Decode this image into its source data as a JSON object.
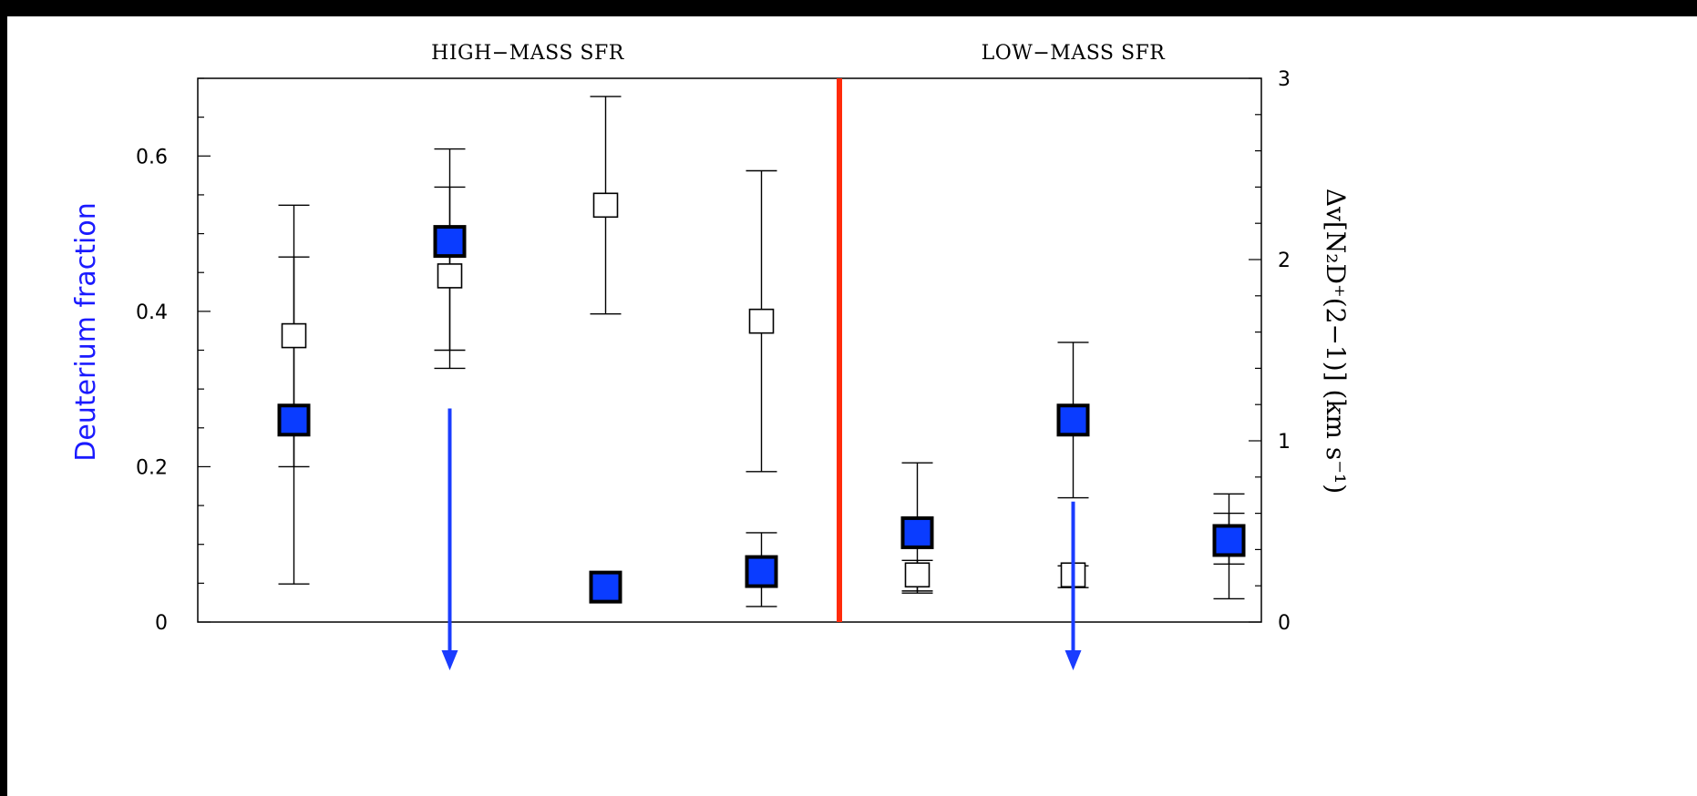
{
  "chart_data": {
    "type": "scatter",
    "headers": [
      "HIGH−MASS SFR",
      "LOW−MASS SFR"
    ],
    "ylabel_left": "Deuterium fraction",
    "ylabel_right": "Δv[N₂D⁺(2−1)] (km s⁻¹)",
    "ylim_left": [
      0,
      0.7
    ],
    "ylim_right": [
      0,
      3
    ],
    "left_ticks": [
      "0",
      "0.2",
      "0.4",
      "0.6"
    ],
    "right_ticks": [
      "0",
      "1",
      "2",
      "3"
    ],
    "x_positions": [
      1,
      2,
      3,
      4,
      5,
      6,
      7
    ],
    "divider_x": 4.5,
    "series": [
      {
        "axis": "left",
        "color": "#0a3cff",
        "points": [
          {
            "x": 1,
            "y": 0.26,
            "lo": 0.2,
            "hi": 0.47
          },
          {
            "x": 2,
            "y": 0.49,
            "lo": 0.35,
            "hi": 0.56
          },
          {
            "x": 3,
            "y": 0.045,
            "lo": 0.025,
            "hi": 0.045
          },
          {
            "x": 4,
            "y": 0.065,
            "lo": 0.02,
            "hi": 0.115
          },
          {
            "x": 5,
            "y": 0.115,
            "lo": 0.04,
            "hi": 0.205
          },
          {
            "x": 6,
            "y": 0.26,
            "lo": 0.16,
            "hi": 0.36
          },
          {
            "x": 7,
            "y": 0.105,
            "lo": 0.03,
            "hi": 0.165
          }
        ],
        "upper_limits": [
          {
            "x": 2,
            "y": 0.275
          },
          {
            "x": 6,
            "y": 0.155
          }
        ]
      },
      {
        "axis": "right",
        "color": "#000000",
        "points": [
          {
            "x": 1,
            "y": 1.58,
            "lo": 0.21,
            "hi": 2.3
          },
          {
            "x": 2,
            "y": 1.91,
            "lo": 1.4,
            "hi": 2.61
          },
          {
            "x": 3,
            "y": 2.3,
            "lo": 1.7,
            "hi": 2.9
          },
          {
            "x": 4,
            "y": 1.66,
            "lo": 0.83,
            "hi": 2.49
          },
          {
            "x": 5,
            "y": 0.26,
            "lo": 0.16,
            "hi": 0.34
          },
          {
            "x": 6,
            "y": 0.26,
            "lo": 0.19,
            "hi": 0.31
          },
          {
            "x": 7,
            "y": 0.46,
            "lo": 0.32,
            "hi": 0.6
          }
        ]
      }
    ]
  }
}
